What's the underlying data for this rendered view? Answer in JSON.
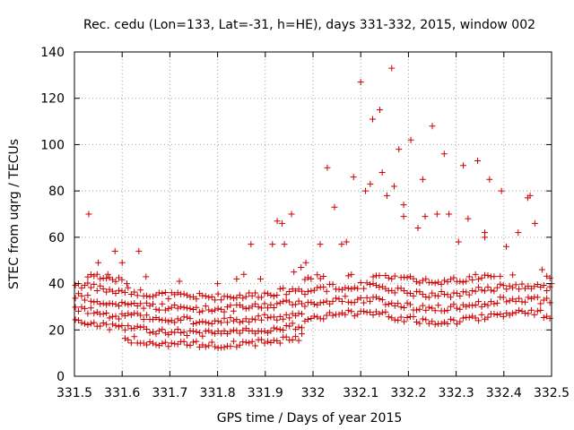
{
  "chart_data": {
    "type": "scatter",
    "title": "Rec. cedu (Lon=133, Lat=-31, h=HE), days 331-332, 2015, window 002",
    "xlabel": "GPS time / Days of year 2015",
    "ylabel": "STEC from uqrg / TECUs",
    "xlim": [
      331.5,
      332.5
    ],
    "ylim": [
      0,
      140
    ],
    "xticks": [
      "331.5",
      "331.6",
      "331.7",
      "331.8",
      "331.9",
      "332",
      "332.1",
      "332.2",
      "332.3",
      "332.4",
      "332.5"
    ],
    "yticks": [
      "0",
      "20",
      "40",
      "60",
      "80",
      "100",
      "120",
      "140"
    ],
    "grid": true,
    "marker": "plus",
    "color": "#cc0000",
    "series": [
      {
        "name": "STEC",
        "points": [
          [
            331.53,
            70
          ],
          [
            331.55,
            49
          ],
          [
            331.57,
            44
          ],
          [
            331.585,
            54
          ],
          [
            331.6,
            49
          ],
          [
            331.61,
            40
          ],
          [
            331.635,
            54
          ],
          [
            331.65,
            43
          ],
          [
            331.72,
            41
          ],
          [
            331.8,
            40
          ],
          [
            331.84,
            42
          ],
          [
            331.855,
            44
          ],
          [
            331.87,
            57
          ],
          [
            331.89,
            42
          ],
          [
            331.915,
            57
          ],
          [
            331.925,
            67
          ],
          [
            331.935,
            66
          ],
          [
            331.94,
            57
          ],
          [
            331.955,
            70
          ],
          [
            331.96,
            45
          ],
          [
            331.975,
            47
          ],
          [
            331.985,
            49
          ],
          [
            332.015,
            57
          ],
          [
            332.03,
            90
          ],
          [
            332.045,
            73
          ],
          [
            332.06,
            57
          ],
          [
            332.07,
            58
          ],
          [
            332.085,
            86
          ],
          [
            332.1,
            127
          ],
          [
            332.11,
            80
          ],
          [
            332.12,
            83
          ],
          [
            332.125,
            111
          ],
          [
            332.14,
            115
          ],
          [
            332.145,
            88
          ],
          [
            332.155,
            78
          ],
          [
            332.165,
            133
          ],
          [
            332.17,
            82
          ],
          [
            332.18,
            98
          ],
          [
            332.19,
            74
          ],
          [
            332.19,
            69
          ],
          [
            332.205,
            102
          ],
          [
            332.22,
            64
          ],
          [
            332.23,
            85
          ],
          [
            332.235,
            69
          ],
          [
            332.25,
            108
          ],
          [
            332.26,
            70
          ],
          [
            332.275,
            96
          ],
          [
            332.285,
            70
          ],
          [
            332.305,
            58
          ],
          [
            332.315,
            91
          ],
          [
            332.325,
            68
          ],
          [
            332.345,
            93
          ],
          [
            332.36,
            62
          ],
          [
            332.36,
            60
          ],
          [
            332.37,
            85
          ],
          [
            332.395,
            80
          ],
          [
            332.405,
            56
          ],
          [
            332.43,
            62
          ],
          [
            332.45,
            77
          ],
          [
            332.455,
            78
          ],
          [
            332.465,
            66
          ],
          [
            332.48,
            46
          ],
          [
            332.5,
            40
          ]
        ]
      }
    ]
  }
}
